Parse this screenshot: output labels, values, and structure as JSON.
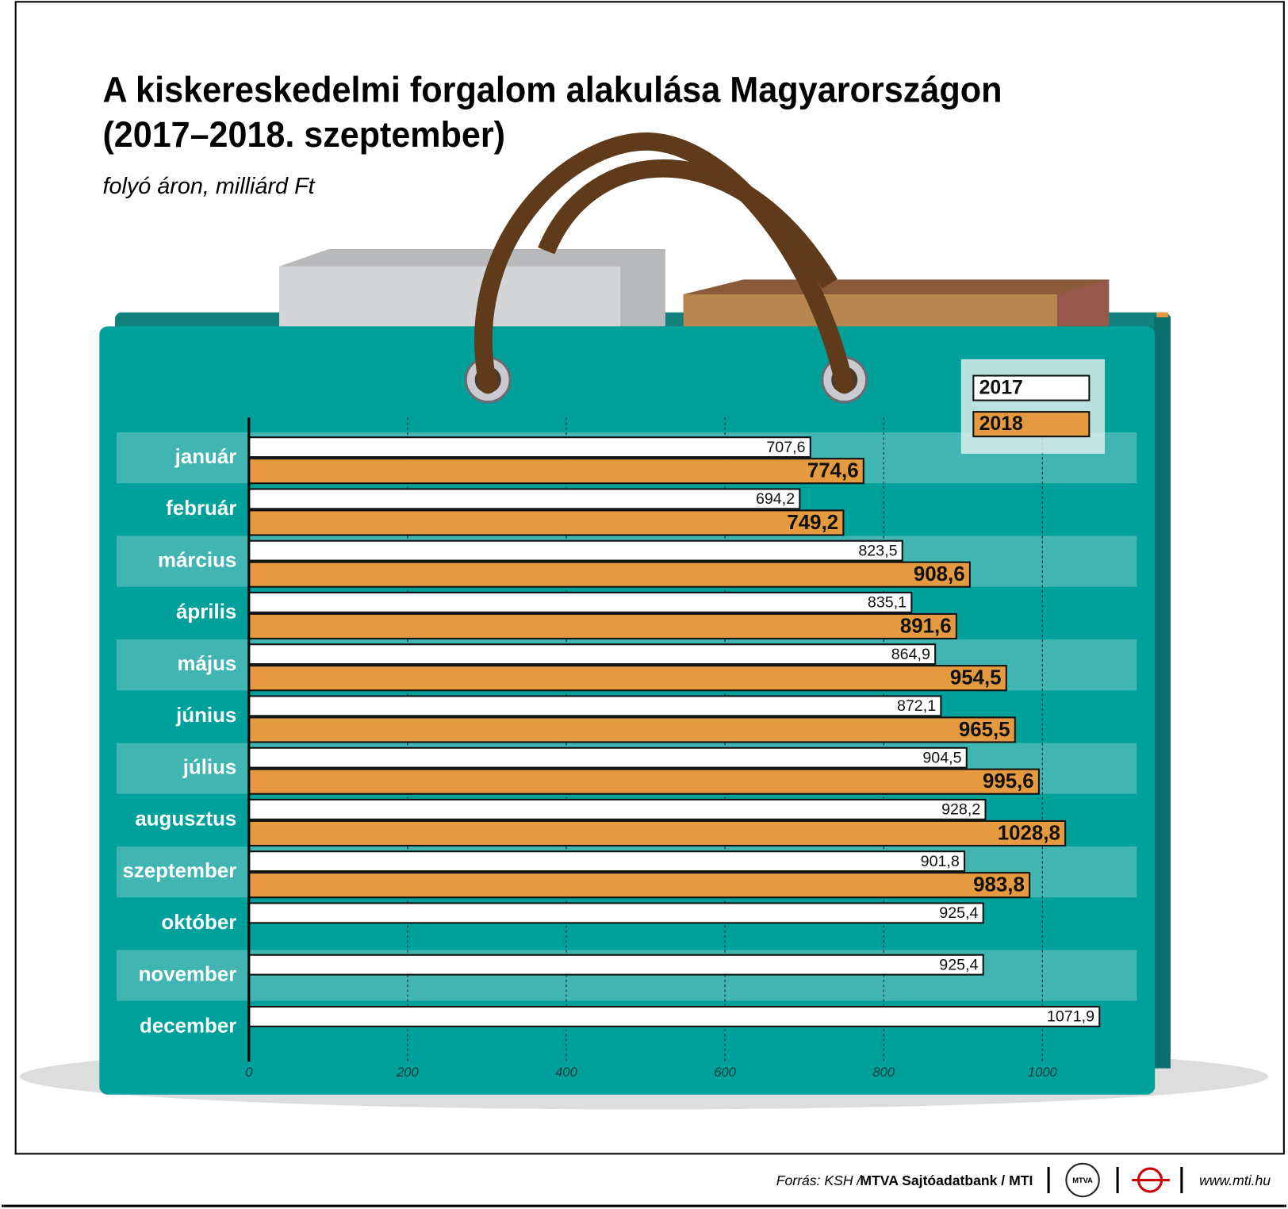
{
  "chart_data": {
    "type": "hbar",
    "title": [
      "A kiskereskedelmi forgalom alakulása Magyarországon",
      "(2017–2018. szeptember)"
    ],
    "subtitle": "folyó áron, milliárd Ft",
    "categories": [
      "január",
      "február",
      "március",
      "április",
      "május",
      "június",
      "július",
      "augusztus",
      "szeptember",
      "október",
      "november",
      "december"
    ],
    "series": [
      {
        "name": "2017",
        "color": "#ffffff",
        "values": [
          707.6,
          694.2,
          823.5,
          835.1,
          864.9,
          872.1,
          904.5,
          928.2,
          901.8,
          925.4,
          925.4,
          1071.9
        ],
        "value_labels": [
          "707,6",
          "694,2",
          "823,5",
          "835,1",
          "864,9",
          "872,1",
          "904,5",
          "928,2",
          "901,8",
          "925,4",
          "925,4",
          "1071,9"
        ]
      },
      {
        "name": "2018",
        "color": "#e59a3f",
        "values": [
          774.6,
          749.2,
          908.6,
          891.6,
          954.5,
          965.5,
          995.6,
          1028.8,
          983.8,
          null,
          null,
          null
        ],
        "value_labels": [
          "774,6",
          "749,2",
          "908,6",
          "891,6",
          "954,5",
          "965,5",
          "995,6",
          "1028,8",
          "983,8",
          null,
          null,
          null
        ]
      }
    ],
    "xlim": [
      0,
      1100
    ],
    "xticks": [
      0,
      200,
      400,
      600,
      800,
      1000
    ],
    "grid": true,
    "legend": "top-right",
    "source": [
      "Forrás: KSH /",
      "MTVA Sajtóadatbank / MTI"
    ],
    "logo": "MTVA",
    "website": "www.mti.hu"
  }
}
